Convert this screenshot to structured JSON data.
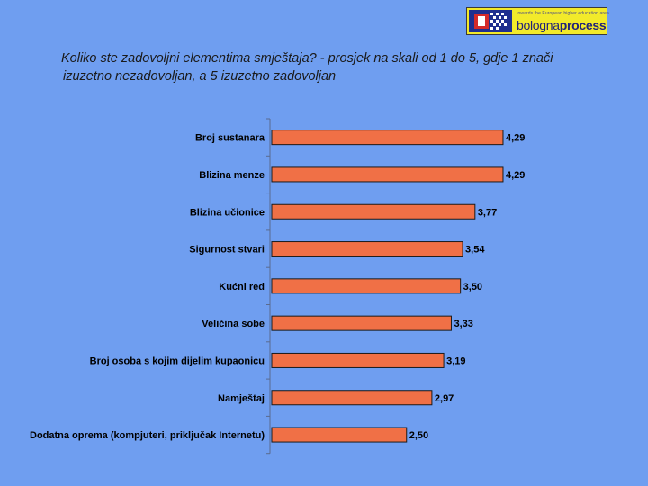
{
  "logo": {
    "tagline": "towards the European higher education area",
    "brand_part1": "bologna",
    "brand_part2": "process"
  },
  "title": {
    "line1": "Koliko ste zadovoljni elementima smještaja?  - prosjek na skali od 1 do 5, gdje 1 znači",
    "line2": "izuzetno nezadovoljan, a 5 izuzetno zadovoljan"
  },
  "colors": {
    "background": "#6f9ef0",
    "bar_fill": "#f07046",
    "bar_stroke": "#1a1a1a"
  },
  "chart_data": {
    "type": "bar",
    "orientation": "horizontal",
    "title": "Koliko ste zadovoljni elementima smještaja?  - prosjek na skali od 1 do 5, gdje 1 znači izuzetno nezadovoljan, a 5 izuzetno zadovoljan",
    "categories": [
      "Broj sustanara",
      "Blizina menze",
      "Blizina učionice",
      "Sigurnost stvari",
      "Kućni red",
      "Veličina sobe",
      "Broj osoba s kojim dijelim kupaonicu",
      "Namještaj",
      "Dodatna oprema (kompjuteri, priključak Internetu)"
    ],
    "values": [
      4.29,
      4.29,
      3.77,
      3.54,
      3.5,
      3.33,
      3.19,
      2.97,
      2.5
    ],
    "data_labels": [
      "4,29",
      "4,29",
      "3,77",
      "3,54",
      "3,50",
      "3,33",
      "3,19",
      "2,97",
      "2,50"
    ],
    "xlim": [
      0,
      5
    ],
    "grid": false,
    "legend": "none"
  }
}
